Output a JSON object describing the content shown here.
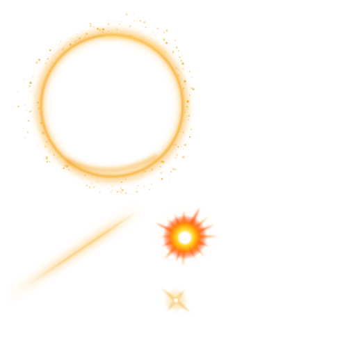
{
  "sprites": [
    {
      "kind": "glowing-ring",
      "icon": "ring-icon"
    },
    {
      "kind": "light-streak",
      "icon": "streak-icon"
    },
    {
      "kind": "fire-burst",
      "icon": "burst-icon"
    },
    {
      "kind": "four-point-sparkle",
      "icon": "sparkle-icon"
    }
  ],
  "colors": {
    "background": "#ffffff",
    "gold": "#f6b23a",
    "amber": "#ff9a1f",
    "orange": "#ff6a00",
    "red_orange": "#ff3d00",
    "pale_yellow": "#fff3b0",
    "white_core": "#ffffff"
  }
}
